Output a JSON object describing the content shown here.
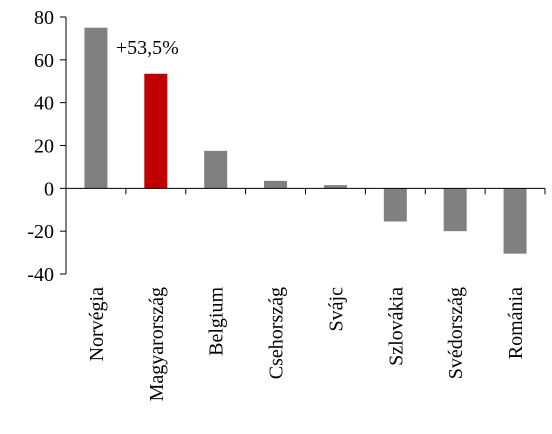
{
  "chart_data": {
    "type": "bar",
    "categories": [
      "Norvégia",
      "Magyarország",
      "Belgium",
      "Csehország",
      "Svájc",
      "Szlovákia",
      "Svédország",
      "Románia"
    ],
    "values": [
      75,
      53.5,
      17.5,
      3.5,
      1.5,
      -15.5,
      -20,
      -30.5
    ],
    "highlight_index": 1,
    "annotation": "+53,5%",
    "ylim": [
      -40,
      80
    ],
    "yticks": [
      -40,
      -20,
      0,
      20,
      40,
      60,
      80
    ],
    "ytick_labels": [
      "-40",
      "-20",
      "0",
      "20",
      "40",
      "60",
      "80"
    ],
    "title": "",
    "xlabel": "",
    "ylabel": "",
    "grid": false,
    "colors": {
      "bar": "#808080",
      "highlight": "#c00000",
      "axis": "#000000"
    }
  }
}
